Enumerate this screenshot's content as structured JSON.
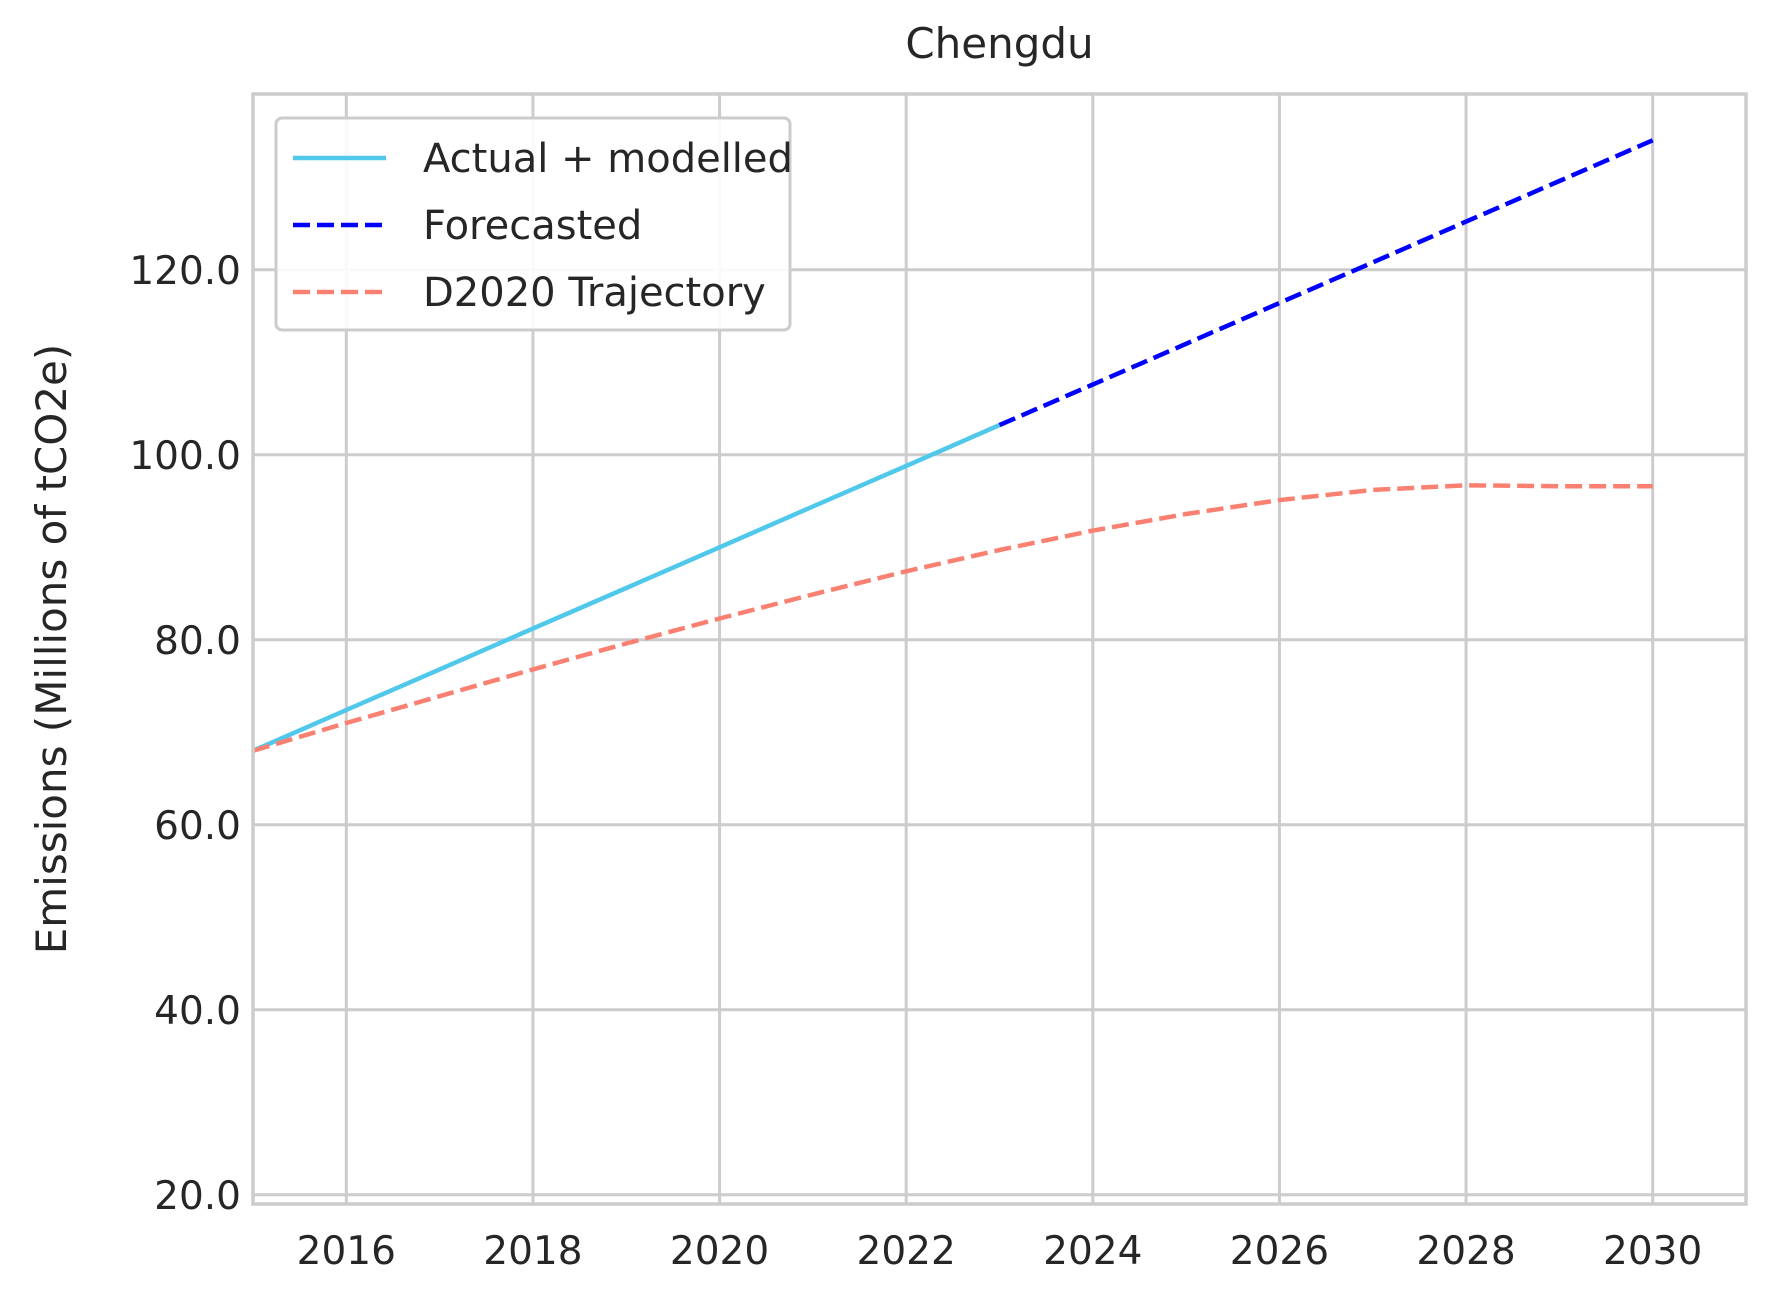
{
  "chart_data": {
    "type": "line",
    "title": "Chengdu",
    "xlabel": "",
    "ylabel": "Emissions (Millions of tCO2e)",
    "xlim": [
      2015,
      2031
    ],
    "ylim": [
      19,
      139
    ],
    "x_ticks": [
      2016,
      2018,
      2020,
      2022,
      2024,
      2026,
      2028,
      2030
    ],
    "x_tick_labels": [
      "2016",
      "2018",
      "2020",
      "2022",
      "2024",
      "2026",
      "2028",
      "2030"
    ],
    "y_ticks": [
      20,
      40,
      60,
      80,
      100,
      120
    ],
    "y_tick_labels": [
      "20.0",
      "40.0",
      "60.0",
      "80.0",
      "100.0",
      "120.0"
    ],
    "grid": true,
    "legend_position": "top-left",
    "series": [
      {
        "name": "Actual + modelled",
        "color": "#4fc8ec",
        "dash": "solid",
        "x": [
          2015,
          2016,
          2017,
          2018,
          2019,
          2020,
          2021,
          2022,
          2023
        ],
        "y": [
          68.0,
          72.4,
          76.8,
          81.2,
          85.6,
          90.0,
          94.4,
          98.8,
          103.2
        ]
      },
      {
        "name": "Forecasted",
        "color": "#0000ff",
        "dash": "dashed",
        "x": [
          2023,
          2024,
          2025,
          2026,
          2027,
          2028,
          2029,
          2030
        ],
        "y": [
          103.2,
          107.6,
          112.0,
          116.4,
          120.8,
          125.2,
          129.6,
          134.0
        ]
      },
      {
        "name": "D2020 Trajectory",
        "color": "#fa8072",
        "dash": "dashed",
        "x": [
          2015,
          2016,
          2017,
          2018,
          2019,
          2020,
          2021,
          2022,
          2023,
          2024,
          2025,
          2026,
          2027,
          2028,
          2029,
          2030
        ],
        "y": [
          68.0,
          71.0,
          73.9,
          76.8,
          79.6,
          82.3,
          84.9,
          87.4,
          89.7,
          91.8,
          93.6,
          95.1,
          96.2,
          96.7,
          96.6,
          96.6
        ]
      }
    ]
  }
}
